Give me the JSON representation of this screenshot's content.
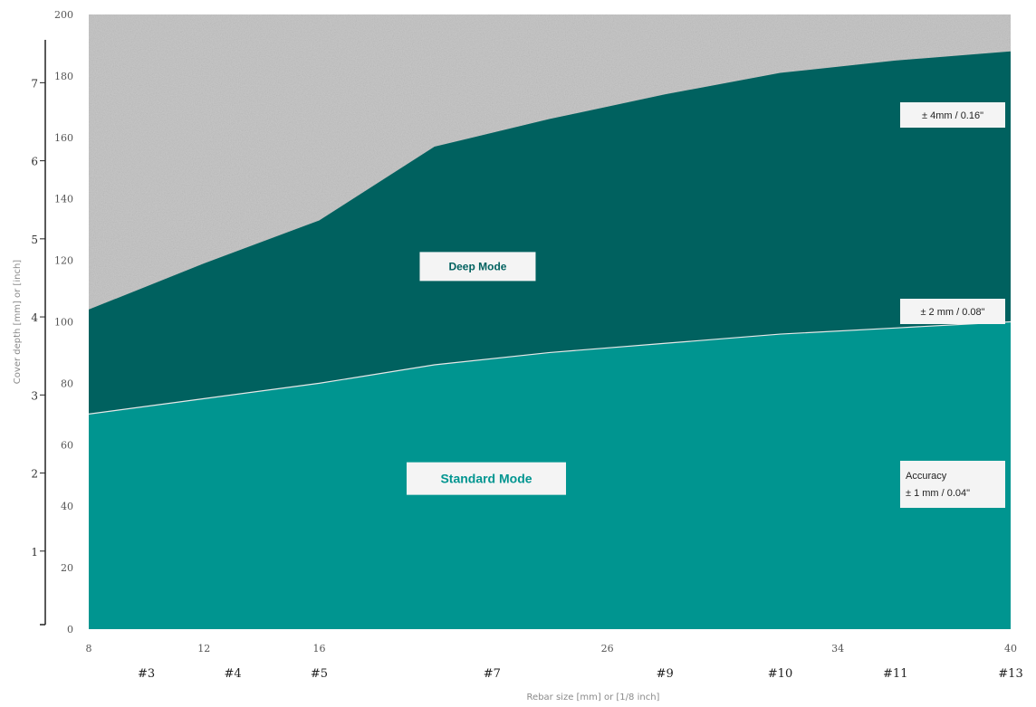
{
  "chart_data": {
    "type": "area",
    "title": "",
    "xlabel": "Rebar size [mm] or [1/8 inch]",
    "ylabel": "Cover depth [mm] or [inch]",
    "xlim": [
      8,
      40
    ],
    "ylim": [
      0,
      200
    ],
    "x_ticks": [
      8,
      12,
      16,
      26,
      34,
      40
    ],
    "x_tick_labels": [
      "8",
      "12",
      "16",
      "26",
      "34",
      "40"
    ],
    "y_ticks": [
      0,
      20,
      40,
      60,
      80,
      100,
      120,
      140,
      160,
      180,
      200
    ],
    "y_tick_labels": [
      "0",
      "20",
      "40",
      "60",
      "80",
      "100",
      "120",
      "140",
      "160",
      "180",
      "200"
    ],
    "inch_ticks": [
      {
        "label": "1",
        "value_mm": 25.4
      },
      {
        "label": "2",
        "value_mm": 50.8
      },
      {
        "label": "3",
        "value_mm": 76.2
      },
      {
        "label": "4",
        "value_mm": 101.6
      },
      {
        "label": "5",
        "value_mm": 127
      },
      {
        "label": "6",
        "value_mm": 152.4
      },
      {
        "label": "7",
        "value_mm": 177.8
      }
    ],
    "bar_sizes": [
      {
        "label": "#3",
        "x": 10
      },
      {
        "label": "#4",
        "x": 13
      },
      {
        "label": "#5",
        "x": 16
      },
      {
        "label": "#7",
        "x": 22
      },
      {
        "label": "#9",
        "x": 28
      },
      {
        "label": "#10",
        "x": 32
      },
      {
        "label": "#11",
        "x": 36
      },
      {
        "label": "#13",
        "x": 40
      }
    ],
    "series": [
      {
        "name": "Standard Mode",
        "color": "#009590",
        "x": [
          8,
          12,
          16,
          20,
          24,
          28,
          32,
          36,
          40
        ],
        "values": [
          70,
          75,
          80,
          86,
          90,
          93,
          96,
          98,
          100
        ]
      },
      {
        "name": "Deep Mode",
        "color": "#00615f",
        "x": [
          8,
          12,
          16,
          20,
          24,
          28,
          32,
          36,
          40
        ],
        "values": [
          104,
          119,
          133,
          157,
          166,
          174,
          181,
          185,
          188
        ]
      }
    ],
    "annotations": [
      {
        "text": "± 4mm / 0.16\"",
        "x": 37.5,
        "y": 168
      },
      {
        "text": "± 2 mm / 0.08\"",
        "x": 37.5,
        "y": 102
      },
      {
        "text_lines": [
          "Accuracy",
          "± 1 mm / 0.04\""
        ],
        "x": 37.5,
        "y": 47
      }
    ],
    "area_labels": [
      {
        "text": "Deep Mode",
        "x": 21.5,
        "y": 118
      },
      {
        "text": "Standard Mode",
        "x": 21.8,
        "y": 49
      }
    ],
    "colors": {
      "background_top": "#c8c8c8",
      "deep": "#00615f",
      "standard": "#009590",
      "boundary": "#e8e8e8"
    },
    "grid": false,
    "legend": "none"
  }
}
